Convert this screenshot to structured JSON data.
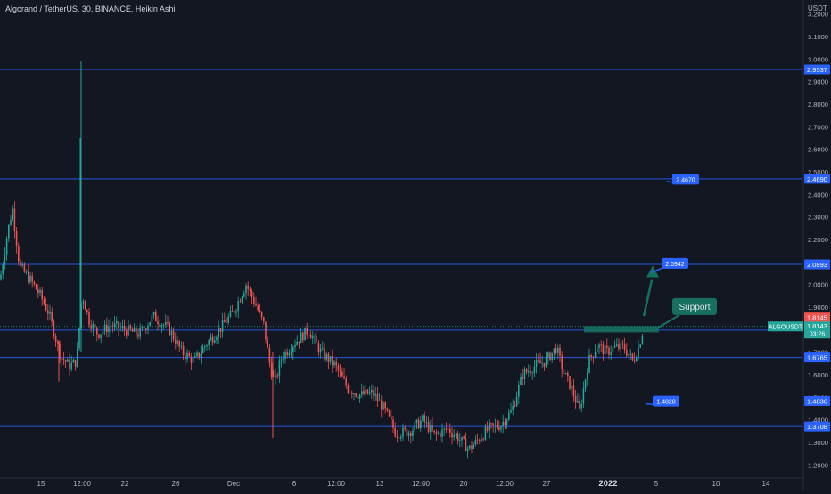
{
  "header": {
    "title": "Algorand / TetherUS, 30, BINANCE, Heikin Ashi",
    "currency": "USDT"
  },
  "colors": {
    "background": "#131722",
    "up": "#26a69a",
    "down": "#ef5350",
    "hline": "#2962ff",
    "label_blue": "#2962ff",
    "support": "#17705f",
    "last_price": "#26a69a",
    "last_close_red": "#ef5350"
  },
  "chart_data": {
    "type": "candlestick",
    "title": "Algorand / TetherUS, 30, BINANCE, Heikin Ashi",
    "ylim": [
      1.17,
      3.23
    ],
    "y_ticks": [
      "3.2000",
      "3.1000",
      "3.0000",
      "2.9000",
      "2.8000",
      "2.7000",
      "2.6000",
      "2.5000",
      "2.4000",
      "2.3000",
      "2.2000",
      "2.1000",
      "2.0000",
      "1.9000",
      "1.7000",
      "1.6000",
      "1.5000",
      "1.4000",
      "1.3000",
      "1.2000"
    ],
    "x_ticks": [
      "15",
      "12:00",
      "22",
      "26",
      "Dec",
      "6",
      "12:00",
      "13",
      "12:00",
      "20",
      "12:00",
      "27",
      "2022",
      "5",
      "10",
      "14"
    ],
    "series": [
      {
        "values": [
          [
            0,
            2.02
          ],
          [
            8,
            2.22
          ],
          [
            14,
            2.34
          ],
          [
            22,
            2.08
          ],
          [
            34,
            2.02
          ],
          [
            44,
            1.96
          ],
          [
            54,
            1.88
          ],
          [
            60,
            1.8
          ],
          [
            68,
            1.68
          ],
          [
            78,
            1.64
          ],
          [
            86,
            1.66
          ],
          [
            92,
            1.96
          ],
          [
            100,
            1.84
          ],
          [
            110,
            1.78
          ],
          [
            124,
            1.82
          ],
          [
            140,
            1.8
          ],
          [
            156,
            1.78
          ],
          [
            172,
            1.86
          ],
          [
            190,
            1.8
          ],
          [
            204,
            1.7
          ],
          [
            218,
            1.66
          ],
          [
            232,
            1.74
          ],
          [
            246,
            1.8
          ],
          [
            262,
            1.88
          ],
          [
            276,
            2.0
          ],
          [
            288,
            1.9
          ],
          [
            296,
            1.82
          ],
          [
            302,
            1.66
          ],
          [
            308,
            1.56
          ],
          [
            316,
            1.68
          ],
          [
            330,
            1.74
          ],
          [
            346,
            1.8
          ],
          [
            360,
            1.7
          ],
          [
            376,
            1.64
          ],
          [
            390,
            1.54
          ],
          [
            404,
            1.51
          ],
          [
            418,
            1.52
          ],
          [
            432,
            1.44
          ],
          [
            444,
            1.34
          ],
          [
            460,
            1.35
          ],
          [
            474,
            1.4
          ],
          [
            488,
            1.33
          ],
          [
            502,
            1.36
          ],
          [
            514,
            1.32
          ],
          [
            526,
            1.27
          ],
          [
            536,
            1.31
          ],
          [
            548,
            1.36
          ],
          [
            562,
            1.38
          ],
          [
            574,
            1.44
          ],
          [
            586,
            1.6
          ],
          [
            600,
            1.64
          ],
          [
            612,
            1.66
          ],
          [
            624,
            1.72
          ],
          [
            632,
            1.61
          ],
          [
            640,
            1.55
          ],
          [
            650,
            1.44
          ],
          [
            660,
            1.66
          ],
          [
            670,
            1.73
          ],
          [
            680,
            1.7
          ],
          [
            690,
            1.72
          ],
          [
            700,
            1.72
          ],
          [
            710,
            1.66
          ],
          [
            716,
            1.72
          ],
          [
            722,
            1.81
          ]
        ]
      }
    ],
    "horizontal_levels": [
      {
        "value": 2.9537,
        "label": "2.9537"
      },
      {
        "value": 2.469,
        "label": "2.4690"
      },
      {
        "value": 2.0893,
        "label": "2.0893"
      },
      {
        "value": 1.7982,
        "label": "1.7982"
      },
      {
        "value": 1.6765,
        "label": "1.6765"
      },
      {
        "value": 1.4836,
        "label": "1.4836"
      },
      {
        "value": 1.3708,
        "label": "1.3708"
      }
    ],
    "price_tags": [
      {
        "value": 1.8145,
        "label": "1.8145",
        "color": "red"
      },
      {
        "symbol": "ALGOUSDT",
        "value": 1.8143,
        "label": "1.8143",
        "timer": "03:26",
        "color": "green"
      }
    ],
    "callouts": [
      {
        "text": "2.4670",
        "value": 2.467
      },
      {
        "text": "2.0942",
        "value": 2.0942
      },
      {
        "text": "1.4828",
        "value": 1.4828
      }
    ],
    "annotation": {
      "text": "Support",
      "value": 1.81
    }
  }
}
